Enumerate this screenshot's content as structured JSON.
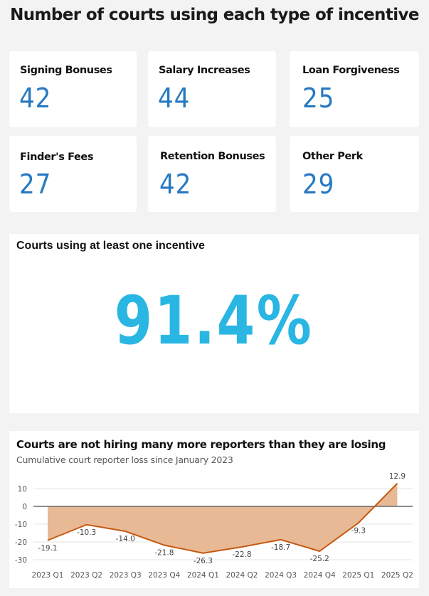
{
  "page": {
    "title": "Number of courts using each type of incentive"
  },
  "kpis": [
    {
      "label": "Signing Bonuses",
      "value": "42"
    },
    {
      "label": "Salary Increases",
      "value": "44"
    },
    {
      "label": "Loan Forgiveness",
      "value": "25"
    },
    {
      "label": "Finder's Fees",
      "value": "27"
    },
    {
      "label": "Retention Bonuses",
      "value": "42"
    },
    {
      "label": "Other Perk",
      "value": "29"
    }
  ],
  "summary": {
    "title": "Courts using at least one incentive",
    "value": "91.4%"
  },
  "colors": {
    "background": "#f3f3f3",
    "card": "#ffffff",
    "kpi_value": "#2679c2",
    "big_value": "#29b6e3",
    "line": "#c55a11",
    "area": "#e8b995",
    "zero_line": "#666666",
    "grid": "#e6e6e6"
  },
  "chart": {
    "title": "Courts are not hiring many more reporters than they are losing",
    "subtitle": "Cumulative court reporter loss since January 2023"
  },
  "chart_data": {
    "type": "area",
    "title": "Courts are not hiring many more reporters than they are losing",
    "subtitle": "Cumulative court reporter loss since January 2023",
    "xlabel": "",
    "ylabel": "",
    "categories": [
      "2023 Q1",
      "2023 Q2",
      "2023 Q3",
      "2023 Q4",
      "2024 Q1",
      "2024 Q2",
      "2024 Q3",
      "2024 Q4",
      "2025 Q1",
      "2025 Q2"
    ],
    "series": [
      {
        "name": "Cumulative court reporter loss",
        "values": [
          -19.1,
          -10.3,
          -14.0,
          -21.8,
          -26.3,
          -22.8,
          -18.7,
          -25.2,
          -9.3,
          12.9
        ]
      }
    ],
    "data_labels": [
      "-19.1",
      "-10.3",
      "-14.0",
      "-21.8",
      "-26.3",
      "-22.8",
      "-18.7",
      "-25.2",
      "-9.3",
      "12.9"
    ],
    "y_ticks": [
      "10",
      "0",
      "-10",
      "-20",
      "-30"
    ],
    "ylim": [
      -30,
      10
    ],
    "grid": true,
    "legend": "none"
  }
}
